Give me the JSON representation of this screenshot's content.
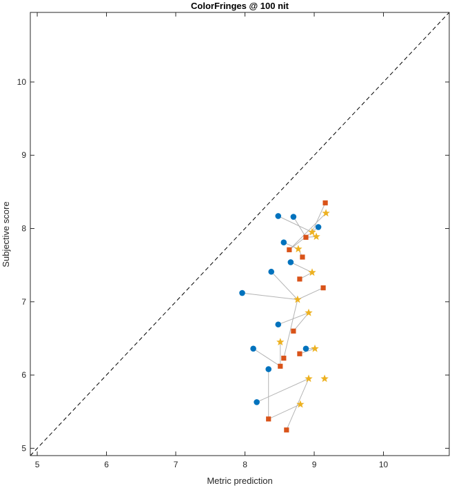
{
  "chart_data": {
    "type": "scatter",
    "title": "ColorFringes @ 100 nit",
    "xlabel": "Metric prediction",
    "ylabel": "Subjective score",
    "xlim": [
      4.9,
      10.95
    ],
    "ylim": [
      4.9,
      10.95
    ],
    "xticks": [
      5,
      6,
      7,
      8,
      9,
      10
    ],
    "yticks": [
      5,
      6,
      7,
      8,
      9,
      10
    ],
    "grid": false,
    "identity_line": true,
    "colors": {
      "circle": "#0072bd",
      "square": "#d95319",
      "star": "#edb120",
      "connector": "#b3b3b3",
      "diagonal": "#000000"
    },
    "series": [
      {
        "marker": "circle",
        "points": [
          {
            "x": 8.48,
            "y": 8.17
          },
          {
            "x": 8.7,
            "y": 8.16
          },
          {
            "x": 9.06,
            "y": 8.02
          },
          {
            "x": 8.56,
            "y": 7.81
          },
          {
            "x": 8.66,
            "y": 7.54
          },
          {
            "x": 8.38,
            "y": 7.41
          },
          {
            "x": 7.96,
            "y": 7.12
          },
          {
            "x": 8.48,
            "y": 6.69
          },
          {
            "x": 8.12,
            "y": 6.36
          },
          {
            "x": 8.88,
            "y": 6.36
          },
          {
            "x": 8.34,
            "y": 6.08
          },
          {
            "x": 8.17,
            "y": 5.63
          }
        ]
      },
      {
        "marker": "square",
        "points": [
          {
            "x": 9.16,
            "y": 8.35
          },
          {
            "x": 8.88,
            "y": 7.88
          },
          {
            "x": 8.64,
            "y": 7.71
          },
          {
            "x": 8.83,
            "y": 7.61
          },
          {
            "x": 8.79,
            "y": 7.31
          },
          {
            "x": 9.13,
            "y": 7.19
          },
          {
            "x": 8.7,
            "y": 6.6
          },
          {
            "x": 8.79,
            "y": 6.29
          },
          {
            "x": 8.56,
            "y": 6.23
          },
          {
            "x": 8.51,
            "y": 6.12
          },
          {
            "x": 8.34,
            "y": 5.4
          },
          {
            "x": 8.6,
            "y": 5.25
          }
        ]
      },
      {
        "marker": "star",
        "points": [
          {
            "x": 9.17,
            "y": 8.21
          },
          {
            "x": 8.97,
            "y": 7.95
          },
          {
            "x": 9.03,
            "y": 7.89
          },
          {
            "x": 8.77,
            "y": 7.72
          },
          {
            "x": 8.97,
            "y": 7.4
          },
          {
            "x": 8.76,
            "y": 7.03
          },
          {
            "x": 8.92,
            "y": 6.85
          },
          {
            "x": 8.51,
            "y": 6.45
          },
          {
            "x": 9.01,
            "y": 6.36
          },
          {
            "x": 8.92,
            "y": 5.95
          },
          {
            "x": 9.15,
            "y": 5.95
          },
          {
            "x": 8.8,
            "y": 5.6
          }
        ]
      }
    ],
    "connectors": [
      [
        [
          8.48,
          8.17
        ],
        [
          8.97,
          7.95
        ],
        [
          9.16,
          8.35
        ]
      ],
      [
        [
          8.7,
          8.16
        ],
        [
          8.88,
          7.88
        ],
        [
          9.03,
          7.89
        ]
      ],
      [
        [
          9.06,
          8.02
        ],
        [
          8.64,
          7.71
        ],
        [
          9.17,
          8.21
        ]
      ],
      [
        [
          8.56,
          7.81
        ],
        [
          8.77,
          7.72
        ],
        [
          8.83,
          7.61
        ]
      ],
      [
        [
          8.66,
          7.54
        ],
        [
          8.97,
          7.4
        ],
        [
          8.79,
          7.31
        ]
      ],
      [
        [
          8.38,
          7.41
        ],
        [
          8.76,
          7.03
        ],
        [
          8.56,
          6.23
        ]
      ],
      [
        [
          7.96,
          7.12
        ],
        [
          8.76,
          7.03
        ],
        [
          9.13,
          7.19
        ]
      ],
      [
        [
          8.48,
          6.69
        ],
        [
          8.92,
          6.85
        ],
        [
          8.7,
          6.6
        ]
      ],
      [
        [
          8.12,
          6.36
        ],
        [
          8.51,
          6.12
        ],
        [
          8.51,
          6.45
        ]
      ],
      [
        [
          8.88,
          6.36
        ],
        [
          9.01,
          6.36
        ],
        [
          8.79,
          6.29
        ]
      ],
      [
        [
          8.34,
          6.08
        ],
        [
          8.34,
          5.4
        ],
        [
          8.8,
          5.6
        ]
      ],
      [
        [
          8.17,
          5.63
        ],
        [
          8.92,
          5.95
        ],
        [
          8.6,
          5.25
        ]
      ]
    ]
  }
}
